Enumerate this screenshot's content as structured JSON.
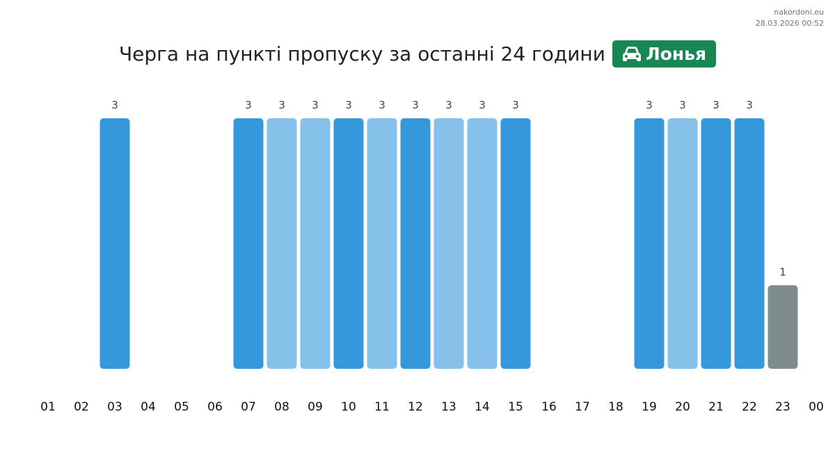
{
  "site": "nakordoni.eu",
  "timestamp": "28.03.2026 00:52",
  "title": "Черга на пункті пропуску за останні 24 години",
  "checkpoint": {
    "name": "Лонья",
    "icon": "car-icon",
    "color": "#198754"
  },
  "chart_data": {
    "type": "bar",
    "categories": [
      "01",
      "02",
      "03",
      "04",
      "05",
      "06",
      "07",
      "08",
      "09",
      "10",
      "11",
      "12",
      "13",
      "14",
      "15",
      "16",
      "17",
      "18",
      "19",
      "20",
      "21",
      "22",
      "23",
      "00"
    ],
    "values": [
      0,
      0,
      3,
      0,
      0,
      0,
      3,
      3,
      3,
      3,
      3,
      3,
      3,
      3,
      3,
      0,
      0,
      0,
      3,
      3,
      3,
      3,
      1,
      0
    ],
    "bar_colors": [
      "",
      "",
      "#3498db",
      "",
      "",
      "",
      "#3498db",
      "#85c1e9",
      "#85c1e9",
      "#3498db",
      "#85c1e9",
      "#3498db",
      "#85c1e9",
      "#85c1e9",
      "#3498db",
      "",
      "",
      "",
      "#3498db",
      "#85c1e9",
      "#3498db",
      "#3498db",
      "#7f8c8d",
      ""
    ],
    "ylim": [
      0,
      3
    ],
    "grid": false,
    "data_labels": true
  }
}
